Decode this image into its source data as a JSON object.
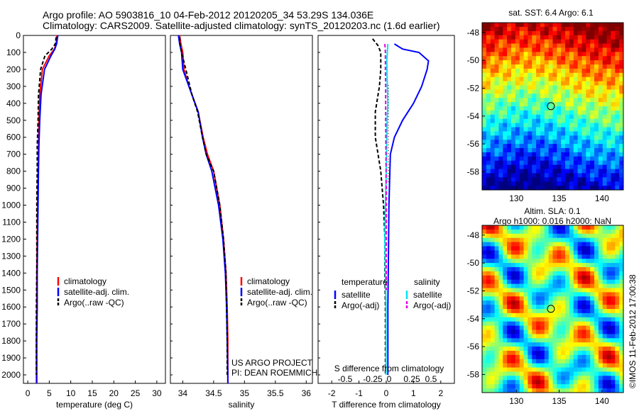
{
  "header": {
    "line1": "Argo profile: AO 5903816_10 04-Feb-2012 20120205_34 53.29S 134.036E",
    "line2": "Climatology: CARS2009. Satellite-adjusted climatology: synTS_20120203.nc (1.6d earlier)"
  },
  "colors": {
    "climatology": "#ff0000",
    "satellite": "#0000ff",
    "argo": "#000000",
    "sal_satellite": "#00e5ee",
    "sal_argo": "#e000e0"
  },
  "chart_data": [
    {
      "type": "line",
      "name": "temperature-panel",
      "xlabel": "temperature (deg C)",
      "ylabel": "",
      "xlim": [
        -1,
        32
      ],
      "ylim": [
        2050,
        0
      ],
      "xticks": [
        0,
        5,
        10,
        15,
        20,
        25,
        30
      ],
      "yticks": [
        0,
        100,
        200,
        300,
        400,
        500,
        600,
        700,
        800,
        900,
        1000,
        1100,
        1200,
        1300,
        1400,
        1500,
        1600,
        1700,
        1800,
        1900,
        2000
      ],
      "legend": [
        "climatology",
        "satellite-adj. clim.",
        "Argo(..raw -QC)"
      ],
      "legend_position": "lower-right",
      "series": [
        {
          "name": "climatology",
          "style": "solid",
          "x": [
            6.8,
            6.6,
            6.2,
            5.0,
            3.4,
            2.8,
            2.6,
            2.5,
            2.4,
            2.3,
            2.2,
            2.1,
            2.1,
            2.0,
            2.0,
            2.0
          ],
          "y": [
            0,
            50,
            80,
            120,
            200,
            350,
            500,
            650,
            800,
            1000,
            1200,
            1400,
            1600,
            1800,
            2000,
            2050
          ]
        },
        {
          "name": "satellite-adj. clim.",
          "style": "solid",
          "x": [
            7.0,
            6.7,
            6.3,
            5.4,
            3.9,
            3.1,
            2.8,
            2.6,
            2.5,
            2.4,
            2.3,
            2.2,
            2.2,
            2.1,
            2.1,
            2.1
          ],
          "y": [
            0,
            50,
            80,
            120,
            200,
            350,
            500,
            650,
            800,
            1000,
            1200,
            1400,
            1600,
            1800,
            2000,
            2050
          ]
        },
        {
          "name": "Argo(..raw -QC)",
          "style": "dashed",
          "x": [
            6.6,
            6.4,
            5.6,
            4.0,
            3.0,
            2.5,
            2.4,
            2.2,
            2.2,
            2.1,
            2.1,
            2.1,
            2.0,
            2.0,
            2.0
          ],
          "y": [
            10,
            50,
            80,
            120,
            200,
            350,
            500,
            650,
            800,
            1000,
            1200,
            1400,
            1600,
            1800,
            2000
          ]
        }
      ]
    },
    {
      "type": "line",
      "name": "salinity-panel",
      "xlabel": "salinity",
      "ylabel": "",
      "xlim": [
        33.8,
        36.1
      ],
      "ylim": [
        2050,
        0
      ],
      "xticks": [
        34,
        34.5,
        35,
        35.5,
        36
      ],
      "legend": [
        "climatology",
        "satellite-adj. clim.",
        "Argo(..raw -QC)"
      ],
      "legend_position": "lower-right",
      "annotations": [
        "US ARGO PROJECT",
        "PI: DEAN ROEMMICH"
      ],
      "series": [
        {
          "name": "climatology",
          "style": "solid",
          "x": [
            33.95,
            33.97,
            34.0,
            34.02,
            34.1,
            34.25,
            34.33,
            34.4,
            34.5,
            34.6,
            34.66,
            34.7,
            34.72,
            34.73,
            34.73,
            34.73
          ],
          "y": [
            0,
            50,
            100,
            200,
            300,
            450,
            600,
            700,
            800,
            1000,
            1200,
            1400,
            1600,
            1800,
            2000,
            2050
          ]
        },
        {
          "name": "satellite-adj. clim.",
          "style": "solid",
          "x": [
            33.93,
            33.95,
            33.98,
            34.0,
            34.1,
            34.25,
            34.32,
            34.38,
            34.47,
            34.58,
            34.65,
            34.69,
            34.71,
            34.72,
            34.73,
            34.73
          ],
          "y": [
            0,
            50,
            100,
            200,
            300,
            450,
            600,
            700,
            800,
            1000,
            1200,
            1400,
            1600,
            1800,
            2000,
            2050
          ]
        },
        {
          "name": "Argo(..raw -QC)",
          "style": "dashed",
          "x": [
            33.95,
            33.96,
            33.98,
            34.05,
            34.15,
            34.24,
            34.32,
            34.38,
            34.5,
            34.6,
            34.66,
            34.7,
            34.71,
            34.72,
            34.72
          ],
          "y": [
            10,
            60,
            100,
            200,
            350,
            450,
            600,
            700,
            800,
            1000,
            1200,
            1400,
            1600,
            1800,
            2000
          ]
        }
      ]
    },
    {
      "type": "line",
      "name": "difference-panel",
      "xlabel": "T difference from climatology",
      "xlabel2": "S difference from climatology",
      "xlim": [
        -2.5,
        2.5
      ],
      "ylim": [
        2050,
        0
      ],
      "xticks": [
        -2,
        -1,
        0,
        1,
        2
      ],
      "xticks_s": [
        "-0.5",
        "-0.25",
        "0",
        "0.25",
        "0.5"
      ],
      "legend_headers": [
        "temperature",
        "salinity"
      ],
      "legend": [
        "satellite",
        "Argo(-adj)",
        "satellite",
        "Argo(-adj)"
      ],
      "legend_position": "lower-center",
      "series": [
        {
          "name": "temperature satellite",
          "style": "solid",
          "x": [
            0.3,
            0.6,
            1.2,
            1.55,
            1.5,
            1.3,
            1.0,
            0.6,
            0.3,
            0.15,
            0.1,
            0.08,
            0.06,
            0.06,
            0.06
          ],
          "y": [
            50,
            80,
            100,
            150,
            200,
            300,
            400,
            500,
            600,
            700,
            1000,
            1300,
            1600,
            1900,
            2000
          ]
        },
        {
          "name": "temperature Argo(-adj)",
          "style": "dashed",
          "x": [
            -0.5,
            -0.3,
            -0.2,
            -0.2,
            -0.25,
            -0.4,
            -0.4,
            -0.3,
            -0.2,
            -0.1,
            -0.05,
            -0.05,
            -0.03,
            -0.03,
            -0.03
          ],
          "y": [
            20,
            60,
            100,
            200,
            300,
            450,
            600,
            700,
            800,
            1000,
            1200,
            1400,
            1600,
            1800,
            2000
          ]
        },
        {
          "name": "salinity satellite",
          "style": "solid",
          "x": [
            0.06,
            0.04,
            0.02,
            0.04,
            0.06,
            0.03,
            0.02,
            0.0,
            -0.03,
            -0.05,
            -0.03,
            -0.01,
            -0.01,
            -0.01,
            -0.01
          ],
          "y": [
            50,
            100,
            150,
            300,
            400,
            500,
            600,
            800,
            1000,
            1200,
            1400,
            1600,
            1800,
            1900,
            2000
          ]
        },
        {
          "name": "salinity Argo(-adj)",
          "style": "dashed",
          "x": [
            -0.05,
            -0.03,
            -0.03,
            -0.02,
            -0.02,
            -0.01,
            0.0,
            0.0,
            0.0,
            0.0,
            0.0
          ],
          "y": [
            50,
            100,
            200,
            300,
            500,
            700,
            900,
            1100,
            1300,
            1400,
            1500
          ]
        }
      ]
    },
    {
      "type": "heatmap",
      "name": "sst-map",
      "title": "sat. SST: 6.4  Argo: 6.1",
      "xlim": [
        126,
        142.5
      ],
      "ylim": [
        -59.3,
        -47.3
      ],
      "xticks": [
        130,
        135,
        140
      ],
      "yticks": [
        -48,
        -50,
        -52,
        -54,
        -56,
        -58
      ],
      "marker": {
        "lon": 134.036,
        "lat": -53.29
      }
    },
    {
      "type": "heatmap",
      "name": "sla-map",
      "title": "Altim. SLA: 0.1",
      "subtitle": "Argo h1000: 0.016 h2000: NaN",
      "xlim": [
        126,
        142.5
      ],
      "ylim": [
        -59.3,
        -47.3
      ],
      "xticks": [
        130,
        135,
        140
      ],
      "yticks": [
        -48,
        -50,
        -52,
        -54,
        -56,
        -58
      ],
      "marker": {
        "lon": 134.036,
        "lat": -53.29
      }
    }
  ],
  "credit": "©IMOS 11-Feb-2012 17:00:38"
}
